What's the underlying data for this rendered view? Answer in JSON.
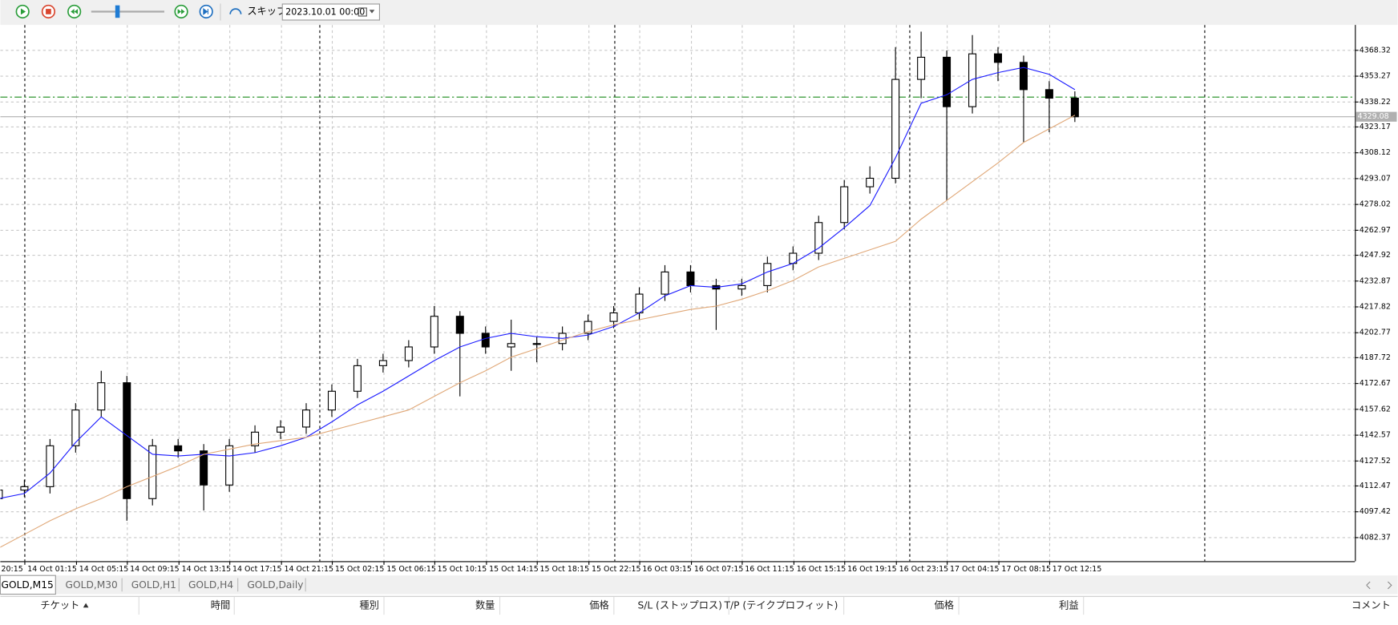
{
  "toolbar": {
    "skip_label": "スキップ",
    "date": "2023.10.01 00:00"
  },
  "chart_data": {
    "type": "candlestick",
    "categories": [
      "20:15",
      null,
      "14 Oct 01:15",
      null,
      "14 Oct 05:15",
      null,
      "14 Oct 09:15",
      null,
      "14 Oct 13:15",
      null,
      "14 Oct 17:15",
      null,
      "14 Oct 21:15",
      null,
      "15 Oct 02:15",
      null,
      "15 Oct 06:15",
      null,
      "15 Oct 10:15",
      null,
      "15 Oct 14:15",
      null,
      "15 Oct 18:15",
      null,
      "15 Oct 22:15",
      null,
      "16 Oct 03:15",
      null,
      "16 Oct 07:15",
      null,
      "16 Oct 11:15",
      null,
      "16 Oct 15:15",
      null,
      "16 Oct 19:15",
      null,
      "16 Oct 23:15",
      null,
      "17 Oct 04:15",
      null,
      "17 Oct 08:15",
      null,
      "17 Oct 12:15",
      null
    ],
    "open": [
      null,
      4105,
      4110,
      4112,
      4136,
      4157,
      4173,
      4105,
      4136,
      4133,
      4113,
      4136,
      4144,
      4147,
      4157,
      4168,
      4183,
      4186,
      4194,
      4212,
      4202,
      4194,
      4196,
      4196,
      4202,
      4209,
      4214,
      4225,
      4238,
      4230,
      4228,
      4230,
      4243,
      4249,
      4267,
      4288,
      4293,
      4351,
      4364,
      4335,
      4366,
      4361,
      4345,
      4340
    ],
    "high": [
      null,
      4114,
      4116,
      4140,
      4161,
      4180,
      4177,
      4140,
      4140,
      4137,
      4140,
      4148,
      4151,
      4161,
      4172,
      4187,
      4190,
      4198,
      4218,
      4215,
      4206,
      4210,
      4200,
      4206,
      4213,
      4218,
      4229,
      4242,
      4242,
      4234,
      4234,
      4247,
      4253,
      4271,
      4292,
      4300,
      4370,
      4379,
      4368,
      4377,
      4370,
      4365,
      4350,
      4344
    ],
    "low": [
      null,
      4101,
      4106,
      4108,
      4132,
      4153,
      4092,
      4101,
      4129,
      4098,
      4109,
      4132,
      4140,
      4143,
      4153,
      4164,
      4179,
      4182,
      4190,
      4165,
      4190,
      4180,
      4185,
      4192,
      4198,
      4205,
      4210,
      4221,
      4226,
      4204,
      4224,
      4226,
      4239,
      4245,
      4263,
      4284,
      4290,
      4340,
      4280,
      4331,
      4350,
      4314,
      4320,
      4326
    ],
    "close": [
      null,
      4110,
      4112,
      4136,
      4157,
      4173,
      4105,
      4136,
      4133,
      4113,
      4136,
      4144,
      4147,
      4157,
      4168,
      4183,
      4186,
      4194,
      4212,
      4202,
      4194,
      4196,
      4196,
      4202,
      4209,
      4214,
      4225,
      4238,
      4230,
      4228,
      4230,
      4243,
      4249,
      4267,
      4288,
      4293,
      4351,
      4364,
      4335,
      4366,
      4361,
      4345,
      4340,
      4329.08
    ],
    "series": [
      {
        "color": "#1a1aff",
        "values": [
          null,
          4105,
          4108,
          4120,
          4138,
          4153,
          4142,
          4131,
          4130,
          4131,
          4130,
          4132,
          4136,
          4141,
          4150,
          4160,
          4168,
          4177,
          4186,
          4194,
          4199,
          4202,
          4200,
          4199,
          4201,
          4206,
          4214,
          4224,
          4230,
          4229,
          4231,
          4238,
          4243,
          4252,
          4264,
          4277,
          4305,
          4337,
          4342,
          4351,
          4355,
          4358,
          4354,
          4345
        ]
      },
      {
        "color": "#e0a878",
        "values": [
          null,
          4076,
          4084,
          4092,
          4099,
          4105,
          4112,
          4118,
          4124,
          4131,
          4134,
          4137,
          4139,
          4141,
          4145,
          4149,
          4153,
          4157,
          4165,
          4173,
          4180,
          4188,
          4193,
          4198,
          4203,
          4207,
          4210,
          4213,
          4216,
          4218,
          4222,
          4227,
          4233,
          4241,
          4246,
          4251,
          4256,
          4269,
          4280,
          4291,
          4302,
          4314,
          4322,
          4330
        ]
      }
    ],
    "ylim": [
      4068.26,
      4382.96
    ],
    "yticks": [
      4082.37,
      4097.42,
      4112.47,
      4127.52,
      4142.57,
      4157.62,
      4172.67,
      4187.72,
      4202.77,
      4217.82,
      4232.87,
      4247.92,
      4262.97,
      4278.02,
      4293.07,
      4308.12,
      4323.17,
      4338.22,
      4353.27,
      4368.32
    ],
    "current_price": 4329.08,
    "level_line": 4340.6,
    "grid": true
  },
  "tabs": [
    "GOLD,M15",
    "GOLD,M30",
    "GOLD,H1",
    "GOLD,H4",
    "GOLD,Daily"
  ],
  "table": {
    "headers": [
      "チケット",
      "時間",
      "種別",
      "数量",
      "価格",
      "S/L (ストップロス)",
      "T/P (テイクプロフィット)",
      "価格",
      "利益",
      "コメント"
    ]
  }
}
